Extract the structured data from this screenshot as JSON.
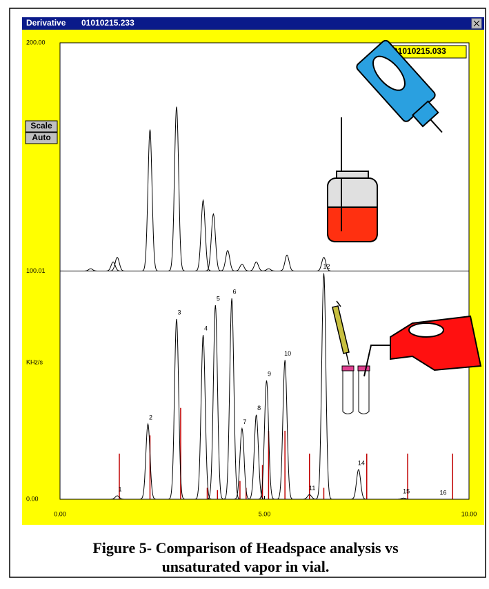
{
  "chart_data": {
    "type": "line",
    "window_title": "Derivative",
    "file_name": "01010215.233",
    "reference_file": "01010215.033",
    "buttons": [
      "Scale",
      "Auto"
    ],
    "ylabel": "KHz/s",
    "xlim": [
      0,
      10
    ],
    "ylim": [
      0,
      200
    ],
    "xticks": [
      {
        "value": 0,
        "label": "0.00"
      },
      {
        "value": 5,
        "label": "5.00"
      },
      {
        "value": 10,
        "label": "10.00"
      }
    ],
    "yticks": [
      {
        "value": 0,
        "label": "0.00"
      },
      {
        "value": 100.01,
        "label": "100.01"
      },
      {
        "value": 200,
        "label": "200.00"
      }
    ],
    "series": [
      {
        "color": "#000000",
        "baseline": 100,
        "x": [
          0.75,
          1.3,
          1.4,
          2.2,
          2.85,
          3.5,
          3.75,
          4.1,
          4.45,
          4.8,
          5.1,
          5.55,
          6.45
        ],
        "values": [
          101,
          104,
          106,
          162,
          172,
          131,
          125,
          109,
          103,
          104,
          101,
          107,
          106
        ]
      },
      {
        "color": "#000000",
        "baseline": 0,
        "x": [
          1.4,
          2.15,
          2.85,
          3.5,
          3.8,
          4.2,
          4.45,
          4.8,
          5.05,
          5.5,
          6.1,
          6.45,
          7.3,
          8.4,
          9.3
        ],
        "values": [
          1.5,
          33,
          79,
          72,
          85,
          88,
          31,
          37,
          52,
          61,
          2,
          99,
          13,
          0.5,
          0
        ],
        "labels": [
          "1",
          "2",
          "3",
          "4",
          "5",
          "6",
          "7",
          "8",
          "9",
          "10",
          "11",
          "12",
          "14",
          "15",
          "16"
        ]
      }
    ],
    "markers": {
      "color": "#c00000",
      "x": [
        1.45,
        2.2,
        2.95,
        3.6,
        3.85,
        4.4,
        4.55,
        4.95,
        5.1,
        5.5,
        6.1,
        6.45,
        7.5,
        8.5,
        9.6
      ],
      "values": [
        20,
        28,
        40,
        5,
        4,
        8,
        5,
        15,
        30,
        30,
        20,
        5,
        20,
        20,
        20
      ]
    },
    "caption": [
      "Figure 5- Comparison of Headspace analysis vs",
      "unsaturated vapor in vial."
    ]
  }
}
